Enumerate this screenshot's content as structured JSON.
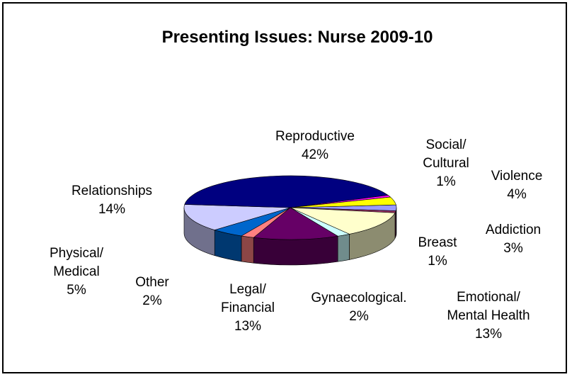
{
  "chart_data": {
    "type": "pie",
    "title": "Presenting Issues: Nurse 2009-10",
    "categories": [
      "Addiction",
      "Breast",
      "Emotional/\nMental Health",
      "Gynaecological.",
      "Legal/\nFinancial",
      "Other",
      "Physical/\nMedical",
      "Relationships",
      "Reproductive",
      "Social/\nCultural",
      "Violence"
    ],
    "values": [
      3,
      1,
      13,
      2,
      13,
      2,
      5,
      14,
      42,
      1,
      4
    ],
    "value_labels": [
      "3%",
      "1%",
      "13%",
      "2%",
      "13%",
      "2%",
      "5%",
      "14%",
      "42%",
      "1%",
      "4%"
    ],
    "colors": [
      "#9999ff",
      "#993366",
      "#ffffcc",
      "#ccffff",
      "#660066",
      "#ff8080",
      "#0066cc",
      "#ccccff",
      "#000080",
      "#ff00ff",
      "#ffff00"
    ]
  }
}
